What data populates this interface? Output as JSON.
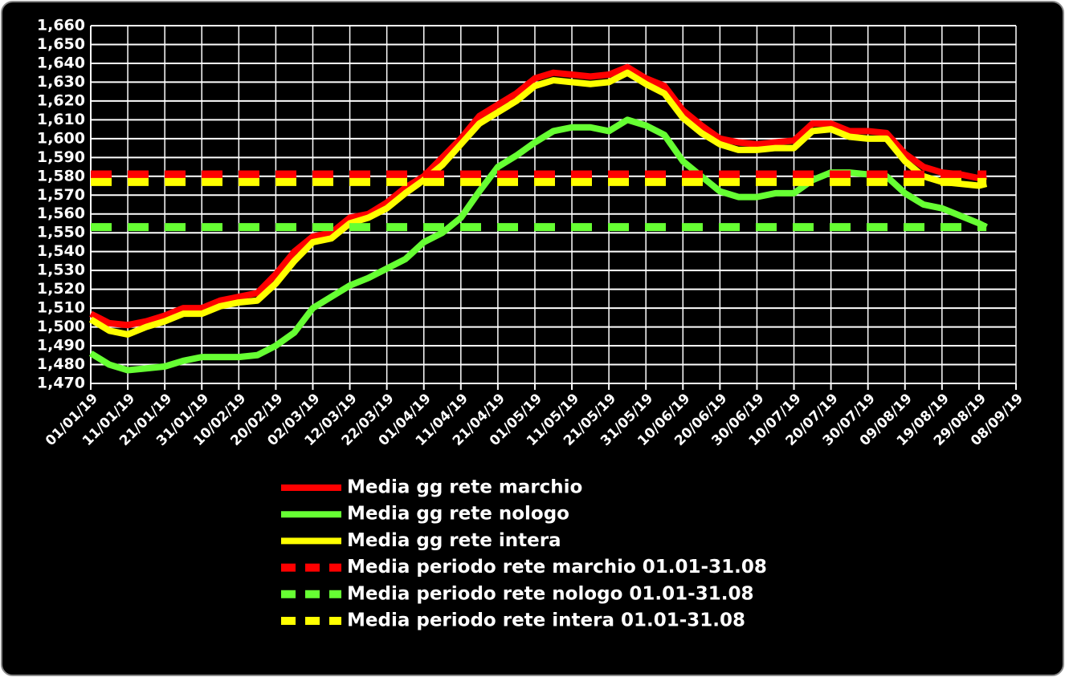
{
  "chart_data": {
    "type": "line",
    "x": [
      "01/01/19",
      "06/01/19",
      "11/01/19",
      "16/01/19",
      "21/01/19",
      "26/01/19",
      "31/01/19",
      "05/02/19",
      "10/02/19",
      "15/02/19",
      "20/02/19",
      "25/02/19",
      "02/03/19",
      "07/03/19",
      "12/03/19",
      "17/03/19",
      "22/03/19",
      "27/03/19",
      "01/04/19",
      "06/04/19",
      "11/04/19",
      "16/04/19",
      "21/04/19",
      "26/04/19",
      "01/05/19",
      "06/05/19",
      "11/05/19",
      "16/05/19",
      "21/05/19",
      "26/05/19",
      "31/05/19",
      "05/06/19",
      "10/06/19",
      "15/06/19",
      "20/06/19",
      "25/06/19",
      "30/06/19",
      "05/07/19",
      "10/07/19",
      "15/07/19",
      "20/07/19",
      "25/07/19",
      "30/07/19",
      "04/08/19",
      "09/08/19",
      "14/08/19",
      "19/08/19",
      "24/08/19",
      "29/08/19",
      "31/08/19"
    ],
    "series": [
      {
        "name": "Media gg rete marchio",
        "color": "#ff0000",
        "values": [
          1507,
          1502,
          1501,
          1503,
          1506,
          1510,
          1510,
          1514,
          1516,
          1518,
          1528,
          1540,
          1548,
          1550,
          1558,
          1560,
          1566,
          1574,
          1580,
          1590,
          1600,
          1612,
          1618,
          1624,
          1632,
          1635,
          1634,
          1633,
          1634,
          1638,
          1632,
          1628,
          1615,
          1607,
          1600,
          1598,
          1597,
          1598,
          1599,
          1608,
          1608,
          1604,
          1604,
          1603,
          1592,
          1585,
          1582,
          1581,
          1579,
          1580
        ]
      },
      {
        "name": "Media gg rete nologo",
        "color": "#66ff33",
        "values": [
          1486,
          1480,
          1477,
          1478,
          1479,
          1482,
          1484,
          1484,
          1484,
          1485,
          1490,
          1497,
          1510,
          1516,
          1522,
          1526,
          1531,
          1536,
          1545,
          1550,
          1558,
          1572,
          1585,
          1591,
          1598,
          1604,
          1606,
          1606,
          1604,
          1610,
          1607,
          1602,
          1588,
          1580,
          1572,
          1569,
          1569,
          1571,
          1571,
          1578,
          1582,
          1582,
          1581,
          1580,
          1571,
          1565,
          1563,
          1559,
          1555,
          1553
        ]
      },
      {
        "name": "Media gg rete intera",
        "color": "#ffff00",
        "values": [
          1504,
          1498,
          1496,
          1500,
          1503,
          1507,
          1507,
          1511,
          1513,
          1514,
          1523,
          1535,
          1545,
          1547,
          1555,
          1558,
          1563,
          1571,
          1578,
          1586,
          1597,
          1608,
          1614,
          1620,
          1628,
          1631,
          1630,
          1629,
          1630,
          1635,
          1629,
          1624,
          1611,
          1603,
          1597,
          1594,
          1594,
          1595,
          1595,
          1604,
          1605,
          1601,
          1600,
          1600,
          1588,
          1580,
          1577,
          1576,
          1575,
          1576
        ]
      },
      {
        "name": "Media periodo rete marchio 01.01-31.08",
        "color": "#ff0000",
        "dashed": true,
        "x": [
          "01/01/19",
          "31/08/19"
        ],
        "values": [
          1581,
          1581
        ]
      },
      {
        "name": "Media periodo rete nologo 01.01-31.08",
        "color": "#66ff33",
        "dashed": true,
        "x": [
          "01/01/19",
          "31/08/19"
        ],
        "values": [
          1553,
          1553
        ]
      },
      {
        "name": "Media periodo rete intera 01.01-31.08",
        "color": "#ffff00",
        "dashed": true,
        "x": [
          "01/01/19",
          "31/08/19"
        ],
        "values": [
          1577,
          1577
        ]
      }
    ],
    "xlim": [
      "01/01/19",
      "08/09/19"
    ],
    "xticks": [
      "01/01/19",
      "11/01/19",
      "21/01/19",
      "31/01/19",
      "10/02/19",
      "20/02/19",
      "02/03/19",
      "12/03/19",
      "22/03/19",
      "01/04/19",
      "11/04/19",
      "21/04/19",
      "01/05/19",
      "11/05/19",
      "21/05/19",
      "31/05/19",
      "10/06/19",
      "20/06/19",
      "30/06/19",
      "10/07/19",
      "20/07/19",
      "30/07/19",
      "09/08/19",
      "19/08/19",
      "29/08/19",
      "08/09/19"
    ],
    "ylim": [
      1470,
      1660
    ],
    "yticks": [
      {
        "value": 1470,
        "label": "1,470"
      },
      {
        "value": 1480,
        "label": "1,480"
      },
      {
        "value": 1490,
        "label": "1,490"
      },
      {
        "value": 1500,
        "label": "1,500"
      },
      {
        "value": 1510,
        "label": "1,510"
      },
      {
        "value": 1520,
        "label": "1,520"
      },
      {
        "value": 1530,
        "label": "1,530"
      },
      {
        "value": 1540,
        "label": "1,540"
      },
      {
        "value": 1550,
        "label": "1,550"
      },
      {
        "value": 1560,
        "label": "1,560"
      },
      {
        "value": 1570,
        "label": "1,570"
      },
      {
        "value": 1580,
        "label": "1,580"
      },
      {
        "value": 1590,
        "label": "1,590"
      },
      {
        "value": 1600,
        "label": "1,600"
      },
      {
        "value": 1610,
        "label": "1,610"
      },
      {
        "value": 1620,
        "label": "1,620"
      },
      {
        "value": 1630,
        "label": "1,630"
      },
      {
        "value": 1640,
        "label": "1,640"
      },
      {
        "value": 1650,
        "label": "1,650"
      },
      {
        "value": 1660,
        "label": "1,660"
      }
    ],
    "grid": true,
    "legend": "bottom"
  }
}
